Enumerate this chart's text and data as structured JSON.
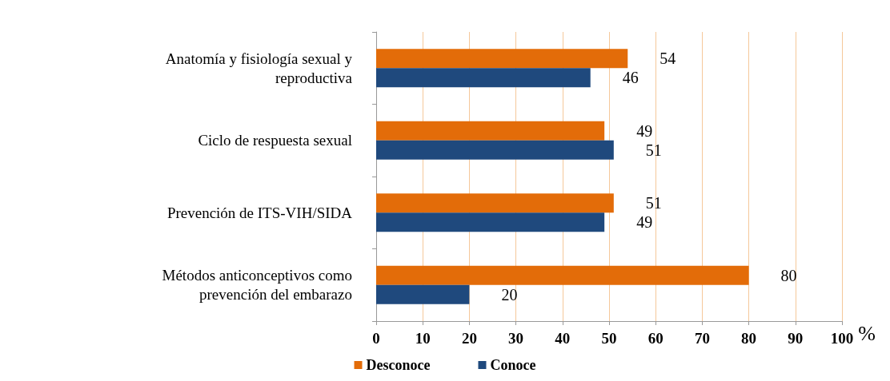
{
  "chart_data": {
    "type": "bar",
    "orientation": "horizontal",
    "categories": [
      "Anatomía y fisiología sexual y\nreproductiva",
      "Ciclo de respuesta sexual",
      "Prevención de ITS-VIH/SIDA",
      "Métodos anticonceptivos como\nprevención del embarazo"
    ],
    "series": [
      {
        "name": "Desconoce",
        "color": "#e36c09",
        "values": [
          54,
          49,
          51,
          80
        ]
      },
      {
        "name": "Conoce",
        "color": "#1f497d",
        "values": [
          46,
          51,
          49,
          20
        ]
      }
    ],
    "xlim": [
      0,
      100
    ],
    "xticks": [
      0,
      10,
      20,
      30,
      40,
      50,
      60,
      70,
      80,
      90,
      100
    ],
    "xlabel": "%",
    "grid": "x",
    "legend": "bottom",
    "data_labels": true
  }
}
